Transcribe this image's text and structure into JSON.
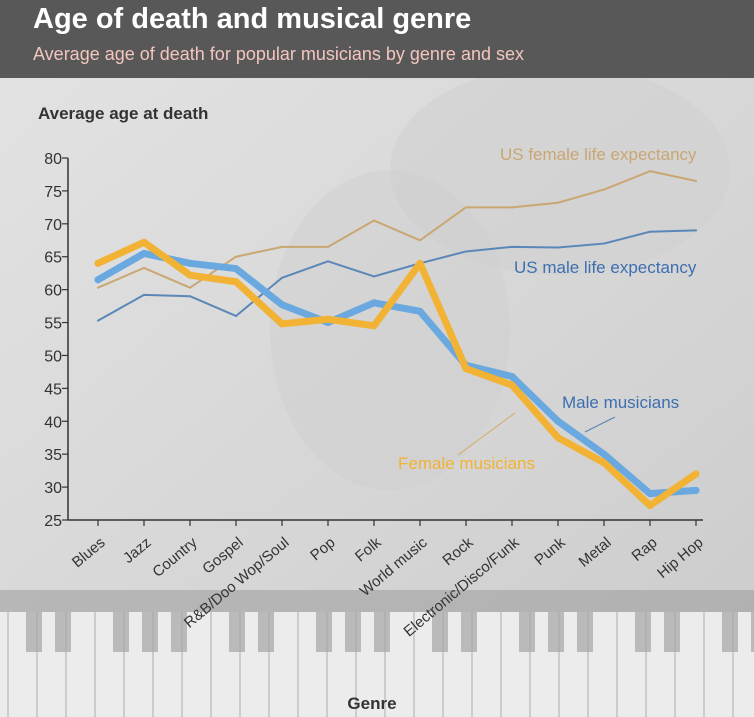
{
  "header": {
    "title": "Age of death and musical genre",
    "subtitle": "Average age of death for popular musicians by genre and sex"
  },
  "chart_data": {
    "type": "line",
    "title": "Age of death and musical genre",
    "subtitle": "Average age of death for popular musicians by genre and sex",
    "ylabel": "Average age at death",
    "xlabel": "Genre",
    "ylim": [
      25,
      80
    ],
    "yticks": [
      80,
      75,
      70,
      65,
      60,
      55,
      50,
      45,
      40,
      35,
      30,
      25
    ],
    "categories": [
      "Blues",
      "Jazz",
      "Country",
      "Gospel",
      "R&B/Doo Wop/Soul",
      "Pop",
      "Folk",
      "World music",
      "Rock",
      "Electronic/Disco/Funk",
      "Punk",
      "Metal",
      "Rap",
      "Hip Hop"
    ],
    "series": [
      {
        "name": "US female life expectancy",
        "color": "#c9a772",
        "values": [
          60.3,
          63.3,
          60.3,
          65.0,
          66.5,
          66.5,
          70.5,
          67.5,
          72.5,
          72.5,
          73.2,
          75.2,
          78.0,
          76.5
        ]
      },
      {
        "name": "US male life expectancy",
        "color": "#5b87b8",
        "values": [
          55.3,
          59.2,
          59.0,
          56.0,
          61.8,
          64.3,
          62.0,
          64.0,
          65.8,
          66.5,
          66.4,
          67.0,
          68.8,
          69.0
        ]
      },
      {
        "name": "Male musicians",
        "color": "#6aa8e0",
        "values": [
          61.5,
          65.5,
          64.0,
          63.2,
          57.7,
          55.0,
          58.0,
          56.7,
          48.5,
          46.8,
          40.0,
          35.0,
          29.0,
          29.5
        ]
      },
      {
        "name": "Female musicians",
        "color": "#f2b233",
        "values": [
          64.0,
          67.2,
          62.2,
          61.2,
          54.8,
          55.5,
          54.5,
          64.0,
          48.0,
          45.5,
          37.5,
          33.7,
          27.2,
          32.0
        ]
      }
    ],
    "annotations": [
      {
        "text": "US female life expectancy",
        "color": "#c9a772"
      },
      {
        "text": "US male life expectancy",
        "color": "#3d6fb0"
      },
      {
        "text": "Male musicians",
        "color": "#3d6fb0"
      },
      {
        "text": "Female musicians",
        "color": "#f2b233"
      }
    ],
    "grid": false,
    "legend": "inline labels"
  }
}
